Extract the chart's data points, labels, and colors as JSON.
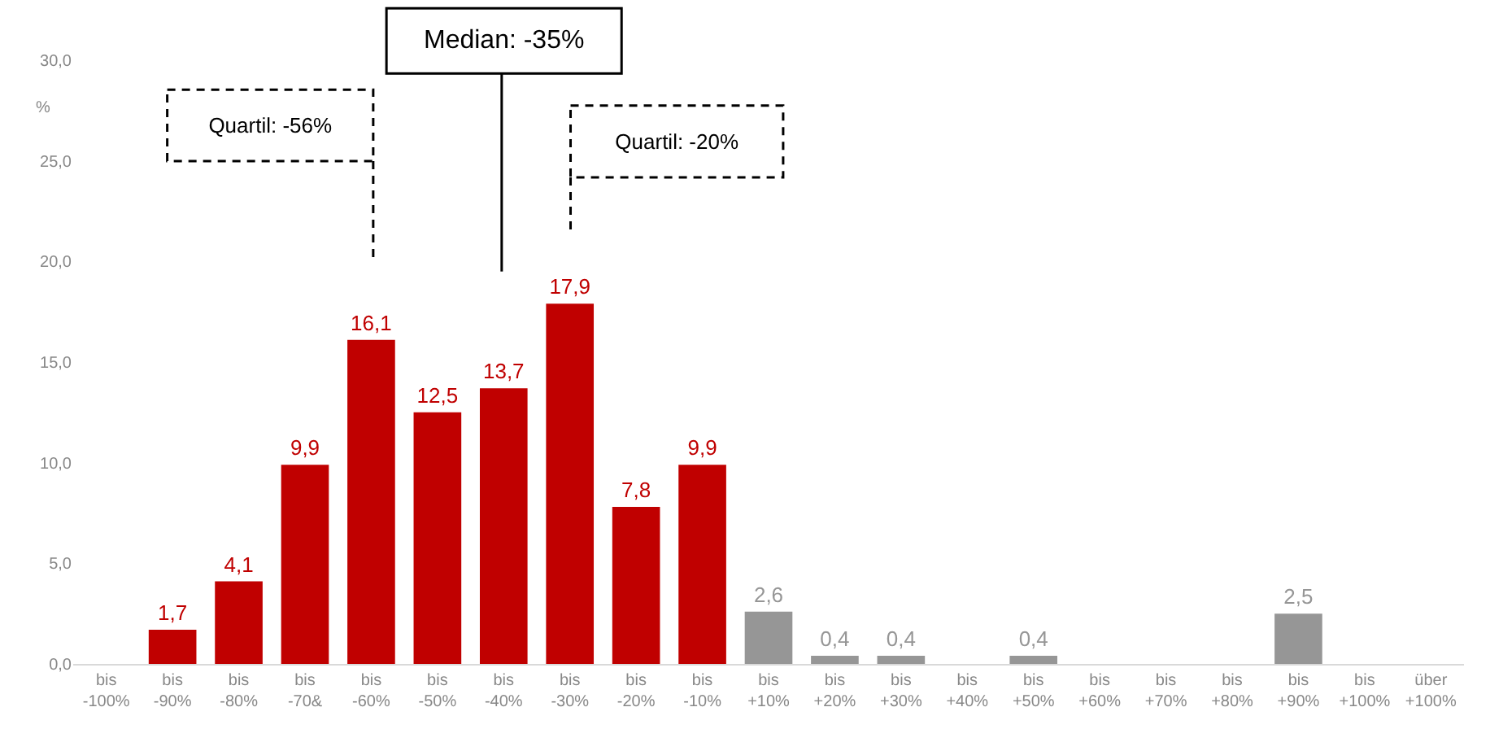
{
  "chart_data": {
    "type": "bar",
    "categories": [
      "bis\n-100%",
      "bis\n-90%",
      "bis\n-80%",
      "bis\n-70&",
      "bis\n-60%",
      "bis\n-50%",
      "bis\n-40%",
      "bis\n-30%",
      "bis\n-20%",
      "bis\n-10%",
      "bis\n+10%",
      "bis\n+20%",
      "bis\n+30%",
      "bis\n+40%",
      "bis\n+50%",
      "bis\n+60%",
      "bis\n+70%",
      "bis\n+80%",
      "bis\n+90%",
      "bis\n+100%",
      "über\n+100%"
    ],
    "values": [
      0,
      1.7,
      4.1,
      9.9,
      16.1,
      12.5,
      13.7,
      17.9,
      7.8,
      9.9,
      2.6,
      0.4,
      0.4,
      0,
      0.4,
      0,
      0,
      0,
      2.5,
      0,
      0
    ],
    "value_labels": [
      null,
      "1,7",
      "4,1",
      "9,9",
      "16,1",
      "12,5",
      "13,7",
      "17,9",
      "7,8",
      "9,9",
      "2,6",
      "0,4",
      "0,4",
      null,
      "0,4",
      null,
      null,
      null,
      "2,5",
      null,
      null
    ],
    "colors": [
      "#c00000",
      "#c00000",
      "#c00000",
      "#c00000",
      "#c00000",
      "#c00000",
      "#c00000",
      "#c00000",
      "#c00000",
      "#c00000",
      "#969696",
      "#969696",
      "#969696",
      "#969696",
      "#969696",
      "#969696",
      "#969696",
      "#969696",
      "#969696",
      "#969696",
      "#969696"
    ],
    "ylabel": "%",
    "ylim": [
      0,
      30
    ],
    "yticks": [
      {
        "value": 0,
        "label": "0,0"
      },
      {
        "value": 5,
        "label": "5,0"
      },
      {
        "value": 10,
        "label": "10,0"
      },
      {
        "value": 15,
        "label": "15,0"
      },
      {
        "value": 20,
        "label": "20,0"
      },
      {
        "value": 25,
        "label": "25,0"
      },
      {
        "value": 30,
        "label": "30,0"
      }
    ],
    "annotations": [
      "Median: -35%",
      "Quartil: -56%",
      "Quartil: -20%"
    ]
  }
}
